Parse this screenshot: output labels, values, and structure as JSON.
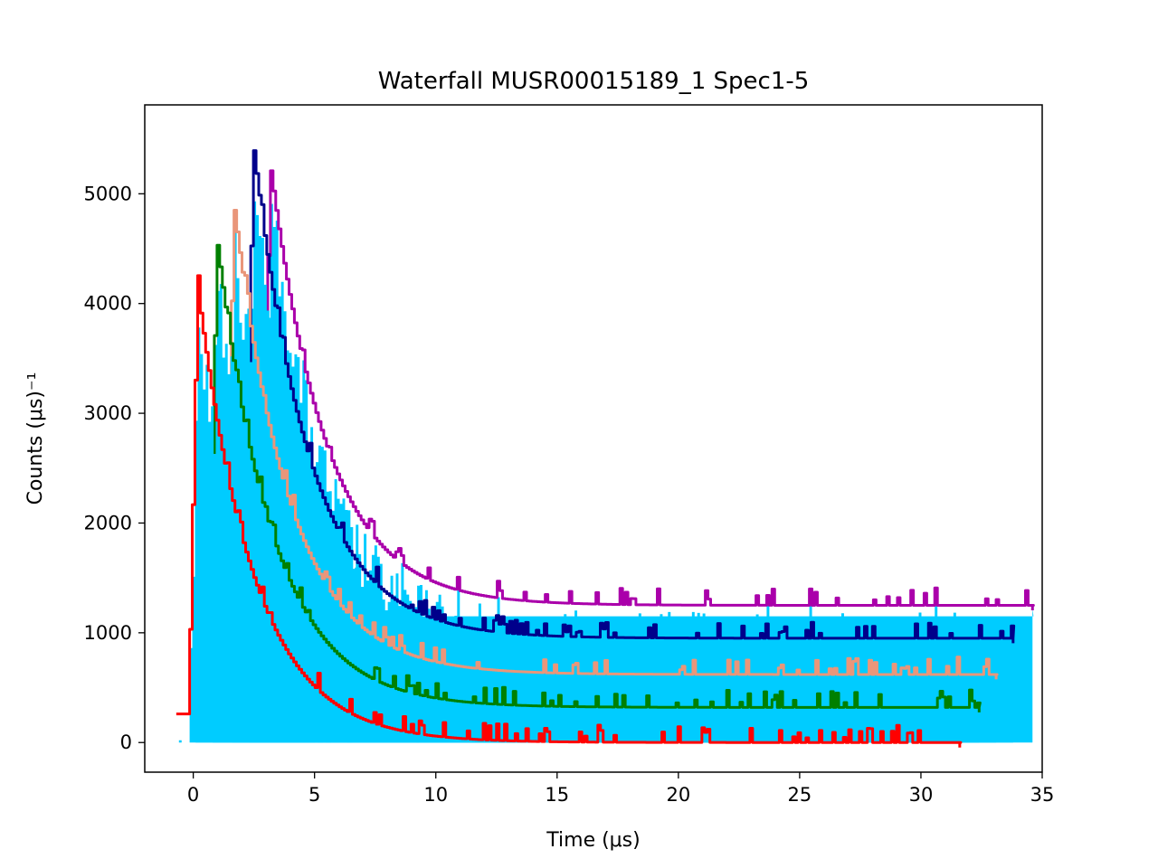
{
  "chart_data": {
    "type": "line",
    "title": "Waterfall MUSR00015189_1 Spec1-5",
    "xlabel": "Time (μs)",
    "ylabel": "Counts (μs)⁻¹",
    "xlim": [
      -2,
      35
    ],
    "ylim": [
      -270,
      5810
    ],
    "x_ticks": [
      0,
      5,
      10,
      15,
      20,
      25,
      30,
      35
    ],
    "y_ticks": [
      0,
      1000,
      2000,
      3000,
      4000,
      5000
    ],
    "grid": false,
    "legend": "none",
    "fill_color": "#00ccff",
    "series": [
      {
        "color": "#aa00aa",
        "x_offset": 3.0,
        "y_offset": 1250,
        "peak_x": 3.0,
        "peak": 5350,
        "end_x": 34.6
      },
      {
        "color": "#00008b",
        "x_offset": 2.3,
        "y_offset": 950,
        "peak_x": 2.5,
        "peak": 5550,
        "end_x": 33.8
      },
      {
        "color": "#e9967a",
        "x_offset": 1.5,
        "y_offset": 620,
        "peak_x": 2.1,
        "peak": 5000,
        "end_x": 33.1
      },
      {
        "color": "#008000",
        "x_offset": 0.8,
        "y_offset": 320,
        "peak_x": 0.9,
        "peak": 4680,
        "end_x": 32.4
      },
      {
        "color": "#ff0000",
        "x_offset": 0.0,
        "y_offset": 0,
        "peak_x": 0.1,
        "peak": 4250,
        "end_x": 31.6
      }
    ]
  }
}
